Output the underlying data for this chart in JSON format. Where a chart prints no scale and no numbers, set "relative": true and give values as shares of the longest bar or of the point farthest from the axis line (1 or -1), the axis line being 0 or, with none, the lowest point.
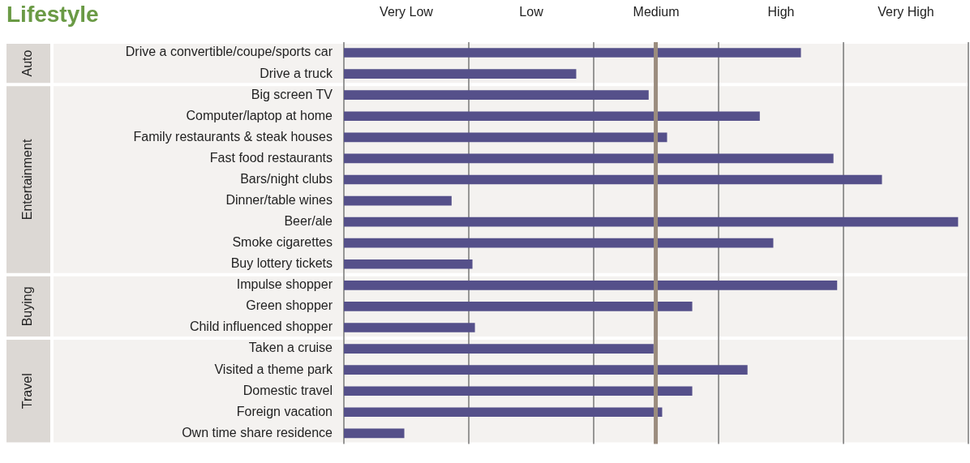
{
  "chart_data": {
    "type": "bar",
    "orientation": "horizontal",
    "relative": true,
    "title": "Lifestyle",
    "categories": [
      "Drive a convertible/coupe/sports car",
      "Drive a truck",
      "Big screen TV",
      "Computer/laptop at home",
      "Family restaurants & steak houses",
      "Fast food restaurants",
      "Bars/night clubs",
      "Dinner/table wines",
      "Beer/ale",
      "Smoke cigarettes",
      "Buy lottery tickets",
      "Impulse shopper",
      "Green shopper",
      "Child influenced shopper",
      "Taken a cruise",
      "Visited a theme park",
      "Domestic travel",
      "Foreign vacation",
      "Own time share residence"
    ],
    "series": [
      {
        "color": "#55508a",
        "values": [
          0.744,
          0.378,
          0.496,
          0.677,
          0.526,
          0.797,
          0.876,
          0.175,
          1,
          0.699,
          0.209,
          0.803,
          0.567,
          0.213,
          0.504,
          0.657,
          0.567,
          0.518,
          0.098
        ]
      }
    ],
    "ref_lines": [
      {
        "axis": "x",
        "value": 0.508,
        "color": "#9b8c7e"
      }
    ],
    "annotations": [
      "Very Low",
      "Low",
      "Medium",
      "High",
      "Very High"
    ],
    "bands": [
      {
        "axis": "y",
        "from": "Drive a convertible/coupe/sports car",
        "to": "Drive a truck",
        "label": "Auto",
        "color": "#f4f2f0"
      },
      {
        "axis": "y",
        "from": "Big screen TV",
        "to": "Buy lottery tickets",
        "label": "Entertainment",
        "color": "#f4f2f0"
      },
      {
        "axis": "y",
        "from": "Impulse shopper",
        "to": "Child influenced shopper",
        "label": "Buying",
        "color": "#f4f2f0"
      },
      {
        "axis": "y",
        "from": "Taken a cruise",
        "to": "Own time share residence",
        "label": "Travel",
        "color": "#f4f2f0"
      }
    ],
    "grid": "x",
    "legend": false
  }
}
